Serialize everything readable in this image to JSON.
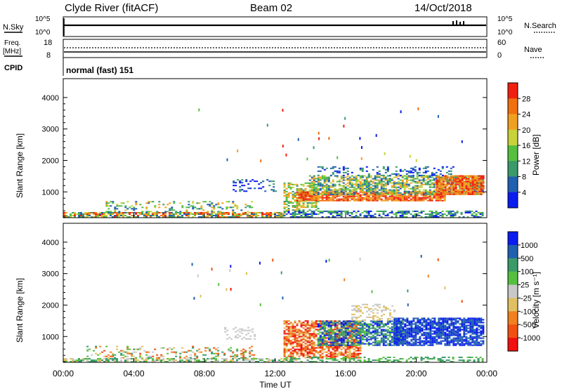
{
  "header": {
    "station": "Clyde River (fitACF)",
    "beam": "Beam 02",
    "date": "14/Oct/2018"
  },
  "top_panels": {
    "nsky_label": "N.Sky",
    "nsky_ticks": [
      "10^5",
      "10^0"
    ],
    "nsearch_label": "N.Search",
    "nsearch_ticks": [
      "10^5",
      "10^0"
    ],
    "freq_label": "Freq.",
    "freq_unit": "[MHz]",
    "freq_ticks": [
      "18",
      "8"
    ],
    "nave_label": "Nave",
    "nave_ticks": [
      "60",
      "0"
    ],
    "cpid_label": "CPID",
    "cpid_value": "normal (fast) 151"
  },
  "chart_data": [
    {
      "type": "heatmap",
      "name": "power-panel",
      "ylabel": "Slant Range [km]",
      "y_ticks": [
        "1000",
        "2000",
        "3000",
        "4000"
      ],
      "ylim": [
        180,
        4600
      ],
      "colorbar_label": "Power [dB]",
      "colorbar_ticks": [
        "4",
        "8",
        "12",
        "16",
        "20",
        "24",
        "28"
      ],
      "colorbar_colors": [
        "#0a1cf0",
        "#2060b0",
        "#3a9a6a",
        "#55c040",
        "#c8d23a",
        "#f0a020",
        "#f07010",
        "#f02010"
      ]
    },
    {
      "type": "heatmap",
      "name": "velocity-panel",
      "ylabel": "Slant Range [km]",
      "y_ticks": [
        "1000",
        "2000",
        "3000",
        "4000"
      ],
      "ylim": [
        180,
        4600
      ],
      "colorbar_label": "Velocity [m s⁻¹]",
      "colorbar_ticks": [
        "1000",
        "500",
        "100",
        "25",
        "-25",
        "-100",
        "-500",
        "-1000"
      ],
      "colorbar_colors": [
        "#0a1cf0",
        "#2060b0",
        "#3a9a6a",
        "#55c040",
        "#c8c8c8",
        "#e0c060",
        "#f08020",
        "#f05010",
        "#f01010"
      ]
    }
  ],
  "x_axis": {
    "ticks": [
      "00:00",
      "04:00",
      "08:00",
      "12:00",
      "16:00",
      "20:00",
      "00:00"
    ],
    "label": "Time UT"
  }
}
